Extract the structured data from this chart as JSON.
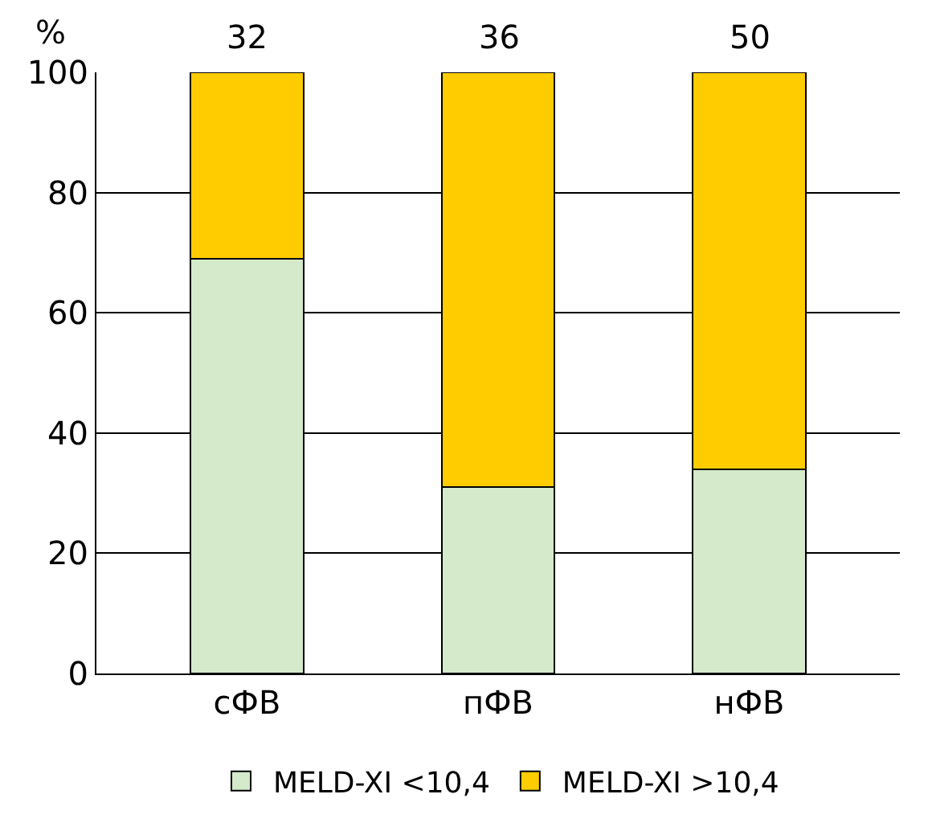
{
  "chart_data": {
    "type": "bar",
    "stacked": true,
    "ylabel": "%",
    "categories": [
      "сФВ",
      "пФВ",
      "нФВ"
    ],
    "series": [
      {
        "name": "MELD-XI <10,4",
        "color": "#d4eacb",
        "values": [
          69,
          31,
          34
        ]
      },
      {
        "name": "MELD-XI >10,4",
        "color": "#ffcc00",
        "values": [
          31,
          69,
          66
        ]
      }
    ],
    "annotations": [
      {
        "text": "32",
        "x": "сФВ",
        "y": 100
      },
      {
        "text": "36",
        "x": "пФВ",
        "y": 100
      },
      {
        "text": "50",
        "x": "нФВ",
        "y": 100
      }
    ],
    "ylim": [
      0,
      100
    ],
    "yticks": [
      0,
      20,
      40,
      60,
      80,
      100
    ],
    "grid": "y",
    "legend": "bottom"
  }
}
